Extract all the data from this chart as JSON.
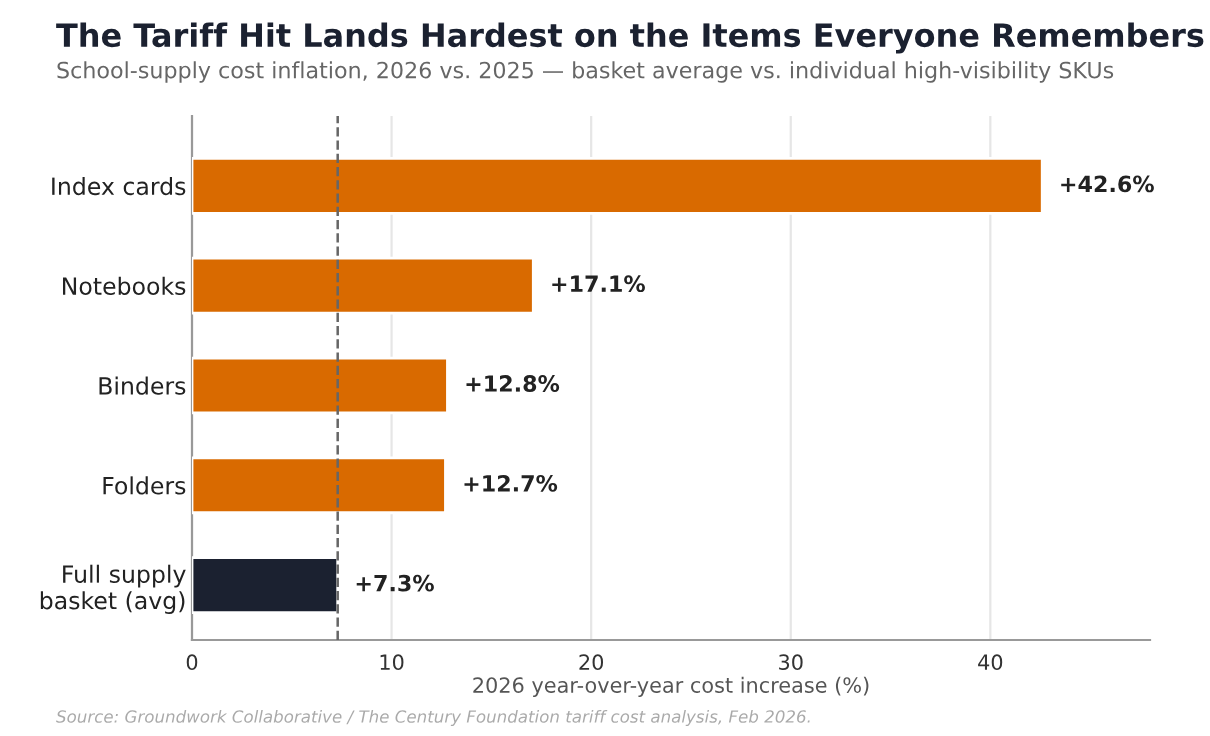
{
  "chart_data": {
    "type": "bar",
    "orientation": "horizontal",
    "title": "The Tariff Hit Lands Hardest on the Items Everyone Remembers",
    "subtitle": "School-supply cost inflation, 2026 vs. 2025 — basket average vs. individual high-visibility SKUs",
    "xlabel": "2026 year-over-year cost increase (%)",
    "categories": [
      "Index cards",
      "Notebooks",
      "Binders",
      "Folders",
      "Full supply\nbasket (avg)"
    ],
    "values": [
      42.6,
      17.1,
      12.8,
      12.7,
      7.3
    ],
    "colors": [
      "#d96a00",
      "#d96a00",
      "#d96a00",
      "#d96a00",
      "#1b2130"
    ],
    "value_labels": [
      "+42.6%",
      "+17.1%",
      "+12.8%",
      "+12.7%",
      "+7.3%"
    ],
    "xlim": [
      0,
      48
    ],
    "xticks": [
      0,
      10,
      20,
      30,
      40
    ],
    "grid": "x",
    "ref_lines": [
      {
        "axis": "x",
        "value": 7.3,
        "label": null,
        "color": "#666666",
        "line_style": "dashed"
      }
    ],
    "annotations": [
      "Source: Groundwork Collaborative / The Century Foundation tariff cost analysis, Feb 2026."
    ]
  }
}
